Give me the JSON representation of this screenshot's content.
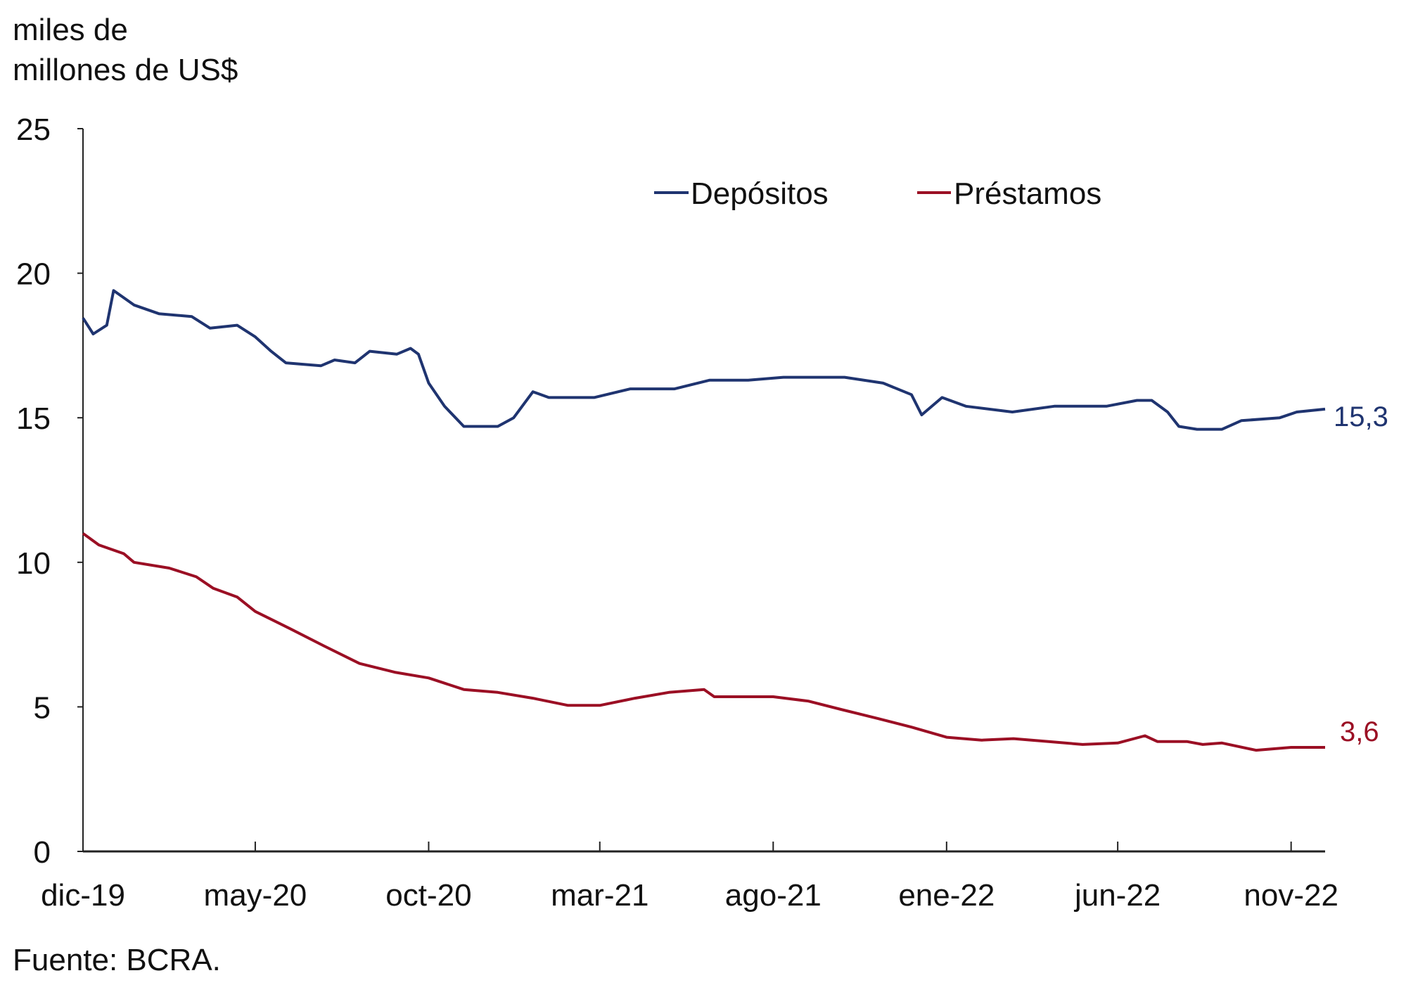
{
  "chart_data": {
    "type": "line",
    "ylabel_lines": [
      "miles de",
      "millones de US$"
    ],
    "ylim": [
      0,
      25
    ],
    "yticks": [
      "0",
      "5",
      "10",
      "15",
      "20",
      "25"
    ],
    "xlim": [
      "2019-12-01",
      "2022-12-01"
    ],
    "xticks": [
      {
        "date": "2019-12-01",
        "label": "dic-19"
      },
      {
        "date": "2020-05-01",
        "label": "may-20"
      },
      {
        "date": "2020-10-01",
        "label": "oct-20"
      },
      {
        "date": "2021-03-01",
        "label": "mar-21"
      },
      {
        "date": "2021-08-01",
        "label": "ago-21"
      },
      {
        "date": "2022-01-01",
        "label": "ene-22"
      },
      {
        "date": "2022-06-01",
        "label": "jun-22"
      },
      {
        "date": "2022-11-01",
        "label": "nov-22"
      }
    ],
    "grid": false,
    "legend_position": "top-center",
    "source": "Fuente: BCRA.",
    "series": [
      {
        "name": "Depósitos",
        "color": "#1f3470",
        "end_label": "15,3",
        "points": [
          [
            "2019-12-01",
            18.45
          ],
          [
            "2019-12-10",
            17.9
          ],
          [
            "2019-12-22",
            18.2
          ],
          [
            "2019-12-28",
            19.4
          ],
          [
            "2020-01-15",
            18.9
          ],
          [
            "2020-02-06",
            18.6
          ],
          [
            "2020-03-06",
            18.5
          ],
          [
            "2020-03-22",
            18.1
          ],
          [
            "2020-04-15",
            18.2
          ],
          [
            "2020-05-01",
            17.8
          ],
          [
            "2020-05-15",
            17.3
          ],
          [
            "2020-05-28",
            16.9
          ],
          [
            "2020-06-28",
            16.8
          ],
          [
            "2020-07-10",
            17.0
          ],
          [
            "2020-07-28",
            16.9
          ],
          [
            "2020-08-10",
            17.3
          ],
          [
            "2020-09-03",
            17.2
          ],
          [
            "2020-09-15",
            17.4
          ],
          [
            "2020-09-22",
            17.2
          ],
          [
            "2020-10-01",
            16.2
          ],
          [
            "2020-10-15",
            15.4
          ],
          [
            "2020-11-01",
            14.7
          ],
          [
            "2020-12-01",
            14.7
          ],
          [
            "2020-12-15",
            15.0
          ],
          [
            "2021-01-01",
            15.9
          ],
          [
            "2021-01-15",
            15.7
          ],
          [
            "2021-02-24",
            15.7
          ],
          [
            "2021-03-28",
            16.0
          ],
          [
            "2021-05-06",
            16.0
          ],
          [
            "2021-06-06",
            16.3
          ],
          [
            "2021-07-10",
            16.3
          ],
          [
            "2021-08-10",
            16.4
          ],
          [
            "2021-10-03",
            16.4
          ],
          [
            "2021-11-06",
            16.2
          ],
          [
            "2021-12-01",
            15.8
          ],
          [
            "2021-12-10",
            15.1
          ],
          [
            "2021-12-28",
            15.7
          ],
          [
            "2022-01-18",
            15.4
          ],
          [
            "2022-02-28",
            15.2
          ],
          [
            "2022-04-06",
            15.4
          ],
          [
            "2022-05-22",
            15.4
          ],
          [
            "2022-06-18",
            15.6
          ],
          [
            "2022-07-01",
            15.6
          ],
          [
            "2022-07-15",
            15.2
          ],
          [
            "2022-07-25",
            14.7
          ],
          [
            "2022-08-10",
            14.6
          ],
          [
            "2022-09-01",
            14.6
          ],
          [
            "2022-09-18",
            14.9
          ],
          [
            "2022-10-22",
            15.0
          ],
          [
            "2022-11-06",
            15.2
          ],
          [
            "2022-12-01",
            15.3
          ]
        ]
      },
      {
        "name": "Préstamos",
        "color": "#9b0f24",
        "end_label": "3,6",
        "points": [
          [
            "2019-12-01",
            11.0
          ],
          [
            "2019-12-15",
            10.6
          ],
          [
            "2020-01-06",
            10.3
          ],
          [
            "2020-01-15",
            10.0
          ],
          [
            "2020-02-15",
            9.8
          ],
          [
            "2020-03-10",
            9.5
          ],
          [
            "2020-03-25",
            9.1
          ],
          [
            "2020-04-15",
            8.8
          ],
          [
            "2020-05-01",
            8.3
          ],
          [
            "2020-06-01",
            7.7
          ],
          [
            "2020-07-01",
            7.1
          ],
          [
            "2020-08-01",
            6.5
          ],
          [
            "2020-09-01",
            6.2
          ],
          [
            "2020-10-01",
            6.0
          ],
          [
            "2020-11-01",
            5.6
          ],
          [
            "2020-12-01",
            5.5
          ],
          [
            "2021-01-01",
            5.3
          ],
          [
            "2021-02-01",
            5.05
          ],
          [
            "2021-03-01",
            5.05
          ],
          [
            "2021-04-01",
            5.3
          ],
          [
            "2021-05-01",
            5.5
          ],
          [
            "2021-06-01",
            5.6
          ],
          [
            "2021-06-10",
            5.35
          ],
          [
            "2021-07-01",
            5.35
          ],
          [
            "2021-08-01",
            5.35
          ],
          [
            "2021-09-01",
            5.2
          ],
          [
            "2021-10-01",
            4.9
          ],
          [
            "2021-11-01",
            4.6
          ],
          [
            "2021-12-01",
            4.3
          ],
          [
            "2022-01-01",
            3.95
          ],
          [
            "2022-02-01",
            3.85
          ],
          [
            "2022-03-01",
            3.9
          ],
          [
            "2022-04-01",
            3.8
          ],
          [
            "2022-05-01",
            3.7
          ],
          [
            "2022-06-01",
            3.75
          ],
          [
            "2022-06-25",
            4.0
          ],
          [
            "2022-07-06",
            3.8
          ],
          [
            "2022-08-01",
            3.8
          ],
          [
            "2022-08-15",
            3.7
          ],
          [
            "2022-09-01",
            3.75
          ],
          [
            "2022-10-01",
            3.5
          ],
          [
            "2022-11-01",
            3.6
          ],
          [
            "2022-12-01",
            3.6
          ]
        ]
      }
    ]
  }
}
